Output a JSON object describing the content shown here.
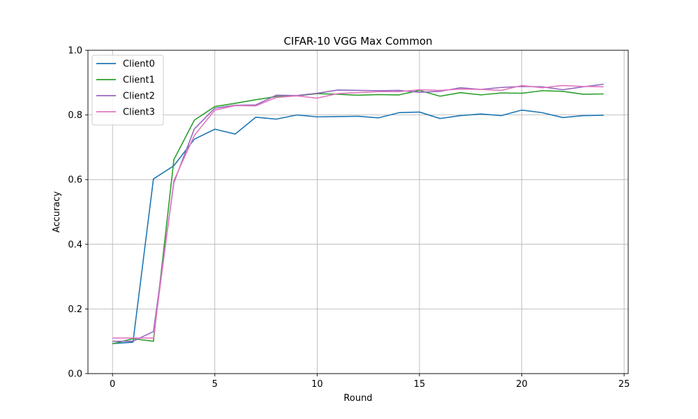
{
  "chart_data": {
    "type": "line",
    "title": "CIFAR-10 VGG Max Common",
    "xlabel": "Round",
    "ylabel": "Accuracy",
    "xlim": [
      -1.2,
      25.2
    ],
    "ylim": [
      0.0,
      1.0
    ],
    "xticks": [
      0,
      5,
      10,
      15,
      20,
      25
    ],
    "yticks": [
      0.0,
      0.2,
      0.4,
      0.6,
      0.8,
      1.0
    ],
    "grid": true,
    "legend_position": "top-left",
    "x": [
      0,
      1,
      2,
      3,
      4,
      5,
      6,
      7,
      8,
      9,
      10,
      11,
      12,
      13,
      14,
      15,
      16,
      17,
      18,
      19,
      20,
      21,
      22,
      23,
      24
    ],
    "series": [
      {
        "name": "Client0",
        "color": "#1f77b4",
        "values": [
          0.093,
          0.097,
          0.602,
          0.643,
          0.725,
          0.756,
          0.741,
          0.793,
          0.787,
          0.8,
          0.794,
          0.795,
          0.796,
          0.791,
          0.807,
          0.809,
          0.789,
          0.798,
          0.803,
          0.798,
          0.815,
          0.807,
          0.792,
          0.798,
          0.799
        ]
      },
      {
        "name": "Client1",
        "color": "#2ca02c",
        "values": [
          0.092,
          0.108,
          0.1,
          0.662,
          0.784,
          0.826,
          0.836,
          0.847,
          0.857,
          0.859,
          0.866,
          0.864,
          0.861,
          0.863,
          0.862,
          0.876,
          0.858,
          0.869,
          0.862,
          0.868,
          0.867,
          0.875,
          0.873,
          0.864,
          0.865
        ]
      },
      {
        "name": "Client2",
        "color": "#9467bd",
        "values": [
          0.1,
          0.1,
          0.13,
          0.591,
          0.757,
          0.821,
          0.83,
          0.831,
          0.861,
          0.86,
          0.867,
          0.877,
          0.876,
          0.875,
          0.876,
          0.87,
          0.873,
          0.884,
          0.879,
          0.885,
          0.888,
          0.887,
          0.878,
          0.887,
          0.895
        ]
      },
      {
        "name": "Client3",
        "color": "#e377c2",
        "values": [
          0.11,
          0.11,
          0.11,
          0.597,
          0.737,
          0.815,
          0.829,
          0.828,
          0.854,
          0.859,
          0.852,
          0.866,
          0.869,
          0.872,
          0.872,
          0.878,
          0.876,
          0.88,
          0.879,
          0.876,
          0.891,
          0.884,
          0.891,
          0.888,
          0.887
        ]
      }
    ]
  }
}
